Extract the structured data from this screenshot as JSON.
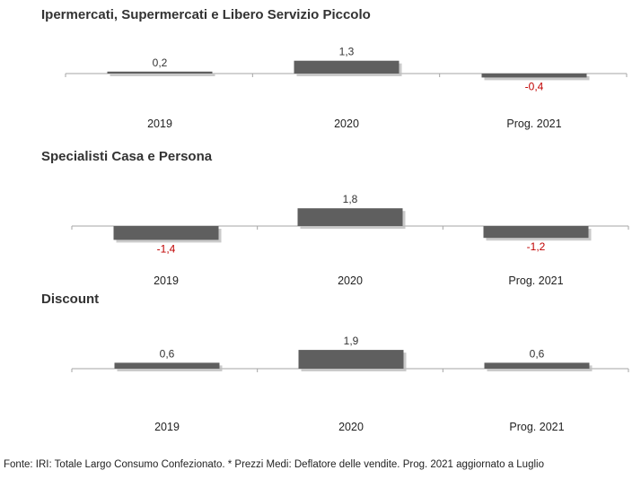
{
  "chart_data": [
    {
      "type": "bar",
      "title": "Ipermercati,  Supermercati e Libero Servizio Piccolo",
      "categories": [
        "2019",
        "2020",
        "Prog. 2021"
      ],
      "values": [
        0.2,
        1.3,
        -0.4
      ],
      "value_labels": [
        "0,2",
        "1,3",
        "-0,4"
      ]
    },
    {
      "type": "bar",
      "title": "Specialisti  Casa e Persona",
      "categories": [
        "2019",
        "2020",
        "Prog. 2021"
      ],
      "values": [
        -1.4,
        1.8,
        -1.2
      ],
      "value_labels": [
        "-1,4",
        "1,8",
        "-1,2"
      ]
    },
    {
      "type": "bar",
      "title": "Discount",
      "categories": [
        "2019",
        "2020",
        "Prog. 2021"
      ],
      "values": [
        0.6,
        1.9,
        0.6
      ],
      "value_labels": [
        "0,6",
        "1,9",
        "0,6"
      ]
    }
  ],
  "colors": {
    "bar": "#5f5f5f",
    "bar_shadow": "#bdbdbd",
    "axis": "#a6a6a6",
    "positive_label": "#333333",
    "negative_label": "#c00000"
  },
  "footer": "Fonte: IRI: Totale Largo Consumo Confezionato.  * Prezzi  Medi:  Deflatore delle vendite.  Prog. 2021 aggiornato a Luglio"
}
